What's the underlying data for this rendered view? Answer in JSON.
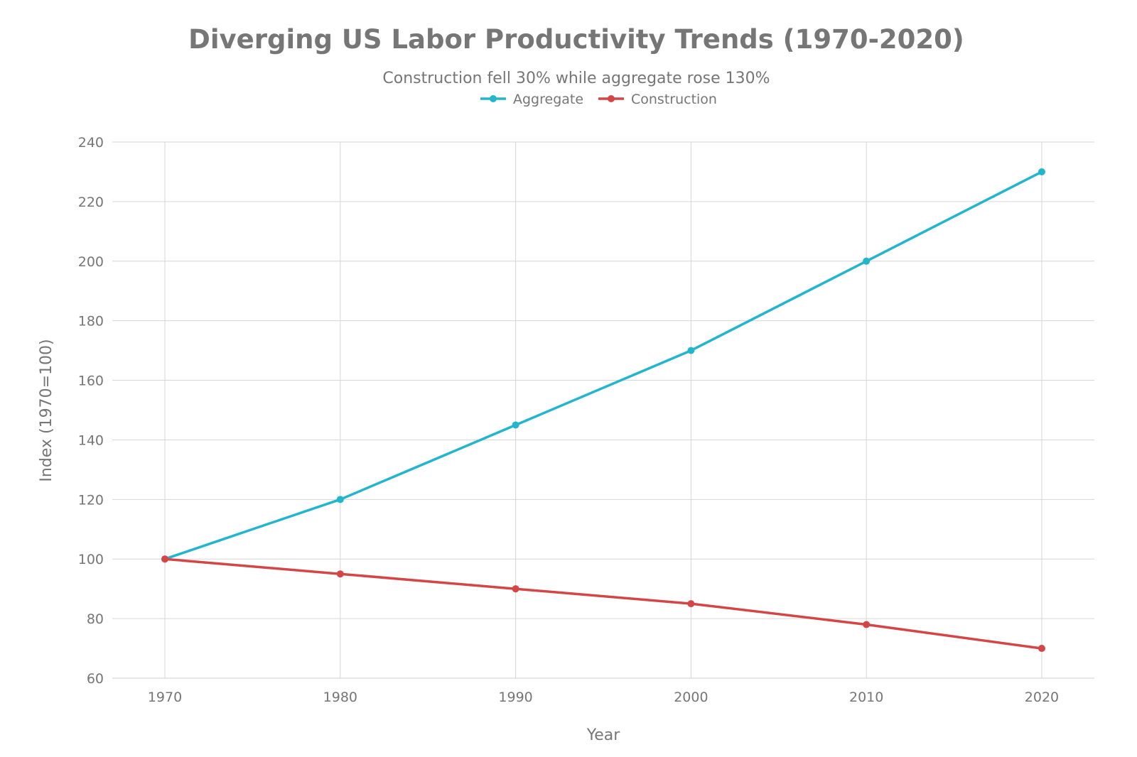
{
  "chart_data": {
    "type": "line",
    "title": "Diverging US Labor Productivity Trends (1970-2020)",
    "subtitle": "Construction fell 30% while aggregate rose 130%",
    "xlabel": "Year",
    "ylabel": "Index (1970=100)",
    "x": [
      1970,
      1980,
      1990,
      2000,
      2010,
      2020
    ],
    "x_tick_labels": [
      "1970",
      "1980",
      "1990",
      "2000",
      "2010",
      "2020"
    ],
    "xlim": [
      1967,
      2023
    ],
    "ylim": [
      60,
      240
    ],
    "y_ticks": [
      60,
      80,
      100,
      120,
      140,
      160,
      180,
      200,
      220,
      240
    ],
    "y_tick_labels": [
      "60",
      "80",
      "100",
      "120",
      "140",
      "160",
      "180",
      "200",
      "220",
      "240"
    ],
    "grid": true,
    "legend_position": "top-center",
    "series": [
      {
        "name": "Aggregate",
        "color": "#22b5cc",
        "values": [
          100,
          120,
          145,
          170,
          200,
          230
        ]
      },
      {
        "name": "Construction",
        "color": "#d44545",
        "values": [
          100,
          95,
          90,
          85,
          78,
          70
        ]
      }
    ]
  }
}
